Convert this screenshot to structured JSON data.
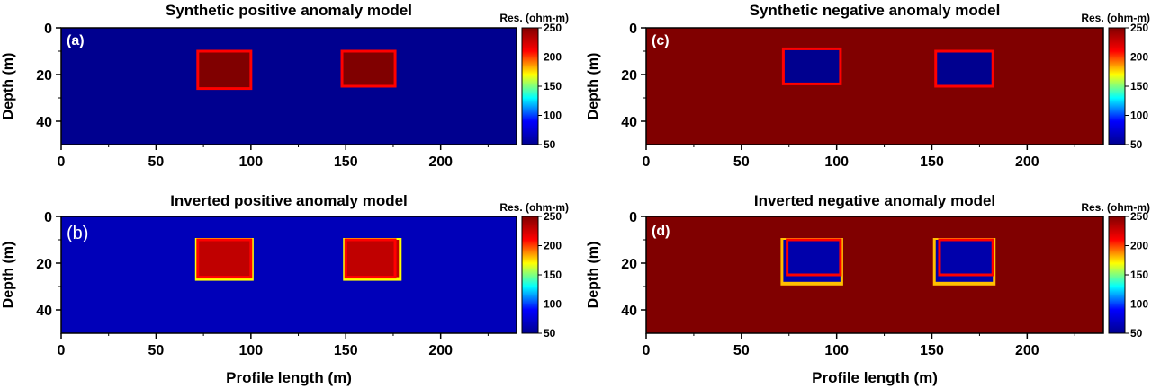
{
  "figure": {
    "y_axis_label": "Depth (m)",
    "x_axis_label": "Profile length (m)",
    "colorbar_label": "Res. (ohm-m)",
    "colormap": [
      "#00008f",
      "#0000ff",
      "#00ffff",
      "#ffff00",
      "#ff0000",
      "#800000"
    ]
  },
  "chart_data": [
    {
      "type": "heatmap",
      "title": "Synthetic positive anomaly model",
      "panel_label": "(a)",
      "xlabel": "",
      "ylabel": "Depth (m)",
      "xlim": [
        0,
        240
      ],
      "ylim": [
        0,
        50
      ],
      "y_inverted": true,
      "x_ticks": [
        "0",
        "50",
        "100",
        "150",
        "200"
      ],
      "y_ticks": [
        "0",
        "20",
        "40"
      ],
      "colorbar": {
        "label": "Res. (ohm-m)",
        "range": [
          50,
          250
        ],
        "ticks": [
          "50",
          "100",
          "150",
          "200",
          "250"
        ]
      },
      "background_value": 50,
      "anomalies": [
        {
          "x": [
            72,
            100
          ],
          "depth": [
            10,
            26
          ],
          "value": 250
        },
        {
          "x": [
            148,
            176
          ],
          "depth": [
            10,
            25
          ],
          "value": 250
        }
      ],
      "outlines": [
        {
          "x": [
            72,
            100
          ],
          "depth": [
            10,
            26
          ],
          "color": "#ff0000"
        },
        {
          "x": [
            148,
            176
          ],
          "depth": [
            10,
            25
          ],
          "color": "#ff0000"
        }
      ]
    },
    {
      "type": "heatmap",
      "title": "Inverted positive anomaly model",
      "panel_label": "(b)",
      "xlabel": "Profile length (m)",
      "ylabel": "Depth (m)",
      "xlim": [
        0,
        240
      ],
      "ylim": [
        0,
        50
      ],
      "y_inverted": true,
      "x_ticks": [
        "0",
        "50",
        "100",
        "150",
        "200"
      ],
      "y_ticks": [
        "0",
        "20",
        "40"
      ],
      "colorbar": {
        "label": "Res. (ohm-m)",
        "range": [
          50,
          250
        ],
        "ticks": [
          "50",
          "100",
          "150",
          "200",
          "250"
        ]
      },
      "background_value": 65,
      "anomalies": [
        {
          "x": [
            72,
            100
          ],
          "depth": [
            10,
            26
          ],
          "value": 230,
          "rim_value": 170
        },
        {
          "x": [
            150,
            178
          ],
          "depth": [
            10,
            26
          ],
          "value": 230,
          "rim_value": 170
        }
      ],
      "outlines": [
        {
          "x": [
            72,
            100
          ],
          "depth": [
            10,
            26
          ],
          "color": "#ff0000"
        },
        {
          "x": [
            150,
            176
          ],
          "depth": [
            10,
            26
          ],
          "color": "#ff0000"
        }
      ]
    },
    {
      "type": "heatmap",
      "title": "Synthetic negative anomaly model",
      "panel_label": "(c)",
      "xlabel": "",
      "ylabel": "Depth (m)",
      "xlim": [
        0,
        240
      ],
      "ylim": [
        0,
        50
      ],
      "y_inverted": true,
      "x_ticks": [
        "0",
        "50",
        "100",
        "150",
        "200"
      ],
      "y_ticks": [
        "0",
        "20",
        "40"
      ],
      "colorbar": {
        "label": "Res. (ohm-m)",
        "range": [
          50,
          250
        ],
        "ticks": [
          "50",
          "100",
          "150",
          "200",
          "250"
        ]
      },
      "background_value": 250,
      "anomalies": [
        {
          "x": [
            72,
            102
          ],
          "depth": [
            9,
            24
          ],
          "value": 50
        },
        {
          "x": [
            152,
            182
          ],
          "depth": [
            10,
            25
          ],
          "value": 50
        }
      ],
      "outlines": [
        {
          "x": [
            72,
            102
          ],
          "depth": [
            9,
            24
          ],
          "color": "#ff0000"
        },
        {
          "x": [
            152,
            182
          ],
          "depth": [
            10,
            25
          ],
          "color": "#ff0000"
        }
      ]
    },
    {
      "type": "heatmap",
      "title": "Inverted negative anomaly model",
      "panel_label": "(d)",
      "xlabel": "Profile length (m)",
      "ylabel": "Depth (m)",
      "xlim": [
        0,
        240
      ],
      "ylim": [
        0,
        50
      ],
      "y_inverted": true,
      "x_ticks": [
        "0",
        "50",
        "100",
        "150",
        "200"
      ],
      "y_ticks": [
        "0",
        "20",
        "40"
      ],
      "colorbar": {
        "label": "Res. (ohm-m)",
        "range": [
          50,
          250
        ],
        "ticks": [
          "50",
          "100",
          "150",
          "200",
          "250"
        ]
      },
      "background_value": 250,
      "anomalies": [
        {
          "x": [
            72,
            102
          ],
          "depth": [
            10,
            28
          ],
          "value": 60,
          "rim_value": 180
        },
        {
          "x": [
            152,
            182
          ],
          "depth": [
            10,
            28
          ],
          "value": 60,
          "rim_value": 180
        }
      ],
      "outlines": [
        {
          "x": [
            74,
            102
          ],
          "depth": [
            10,
            25
          ],
          "color": "#ff0000"
        },
        {
          "x": [
            154,
            182
          ],
          "depth": [
            10,
            25
          ],
          "color": "#ff0000"
        }
      ]
    }
  ]
}
